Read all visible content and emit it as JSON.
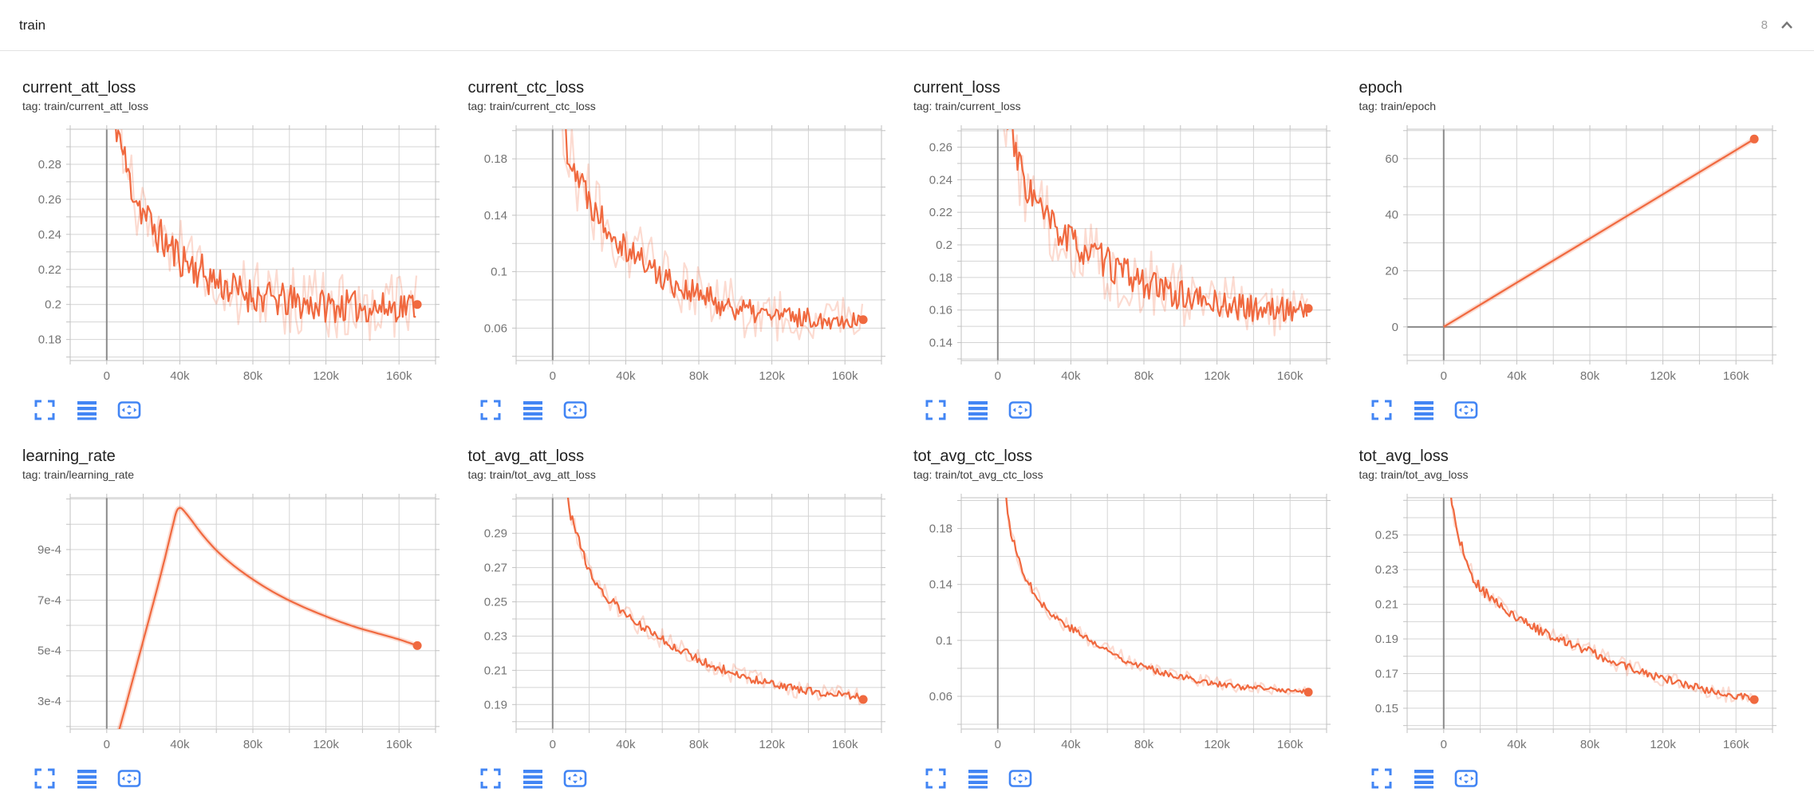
{
  "header": {
    "title": "train",
    "count": "8"
  },
  "colors": {
    "accent": "#f0693f",
    "accent_light": "rgba(242,106,61,0.24)",
    "icon_blue": "#4285f4",
    "axis_text": "#757575",
    "grid_line": "#d4d4d4",
    "plot_border": "#c2c2c2",
    "zero_line": "#8a8a8a",
    "title_text": "#212121",
    "tag_text": "#3d3d3d",
    "header_chevron": "#757575"
  },
  "x_axis": {
    "domain": [
      -20000,
      180000
    ],
    "minor_step": 20000,
    "data_end": 170000,
    "ticks": [
      {
        "v": 0,
        "label": "0"
      },
      {
        "v": 40000,
        "label": "40k"
      },
      {
        "v": 80000,
        "label": "80k"
      },
      {
        "v": 120000,
        "label": "120k"
      },
      {
        "v": 160000,
        "label": "160k"
      }
    ]
  },
  "card_toolbar": {
    "buttons": [
      {
        "name": "expand-card",
        "icon": "fullscreen-icon",
        "active": false
      },
      {
        "name": "log-scale-toggle",
        "icon": "log-scale-icon",
        "active": false
      },
      {
        "name": "fit-domain-to-data",
        "icon": "fit-domain-icon",
        "active": true
      }
    ]
  },
  "charts": [
    {
      "title": "current_att_loss",
      "tag": "tag: train/current_att_loss",
      "seed": 11,
      "y_domain": [
        0.168,
        0.3
      ],
      "y_minor": 0.01,
      "y_ticks": [
        {
          "v": 0.28,
          "label": "0.28"
        },
        {
          "v": 0.26,
          "label": "0.26"
        },
        {
          "v": 0.24,
          "label": "0.24"
        },
        {
          "v": 0.22,
          "label": "0.22"
        },
        {
          "v": 0.2,
          "label": "0.2"
        },
        {
          "v": 0.18,
          "label": "0.18"
        }
      ],
      "trend": [
        [
          0,
          0.34
        ],
        [
          3000,
          0.315
        ],
        [
          6000,
          0.3
        ],
        [
          12000,
          0.272
        ],
        [
          20000,
          0.252
        ],
        [
          30000,
          0.237
        ],
        [
          40000,
          0.227
        ],
        [
          55000,
          0.216
        ],
        [
          70000,
          0.208
        ],
        [
          90000,
          0.203
        ],
        [
          110000,
          0.2
        ],
        [
          130000,
          0.199
        ],
        [
          150000,
          0.198
        ],
        [
          170000,
          0.2
        ]
      ],
      "noise": [
        [
          0,
          0.012
        ],
        [
          170000,
          0.0085
        ]
      ],
      "raw_noise": [
        [
          0,
          0.026
        ],
        [
          30000,
          0.022
        ],
        [
          170000,
          0.018
        ]
      ],
      "end_dot": [
        170000,
        0.2
      ],
      "halo": false,
      "zero_y_line": false
    },
    {
      "title": "current_ctc_loss",
      "tag": "tag: train/current_ctc_loss",
      "seed": 22,
      "y_domain": [
        0.037,
        0.201
      ],
      "y_minor": 0.02,
      "y_ticks": [
        {
          "v": 0.18,
          "label": "0.18"
        },
        {
          "v": 0.14,
          "label": "0.14"
        },
        {
          "v": 0.1,
          "label": "0.1"
        },
        {
          "v": 0.06,
          "label": "0.06"
        }
      ],
      "trend": [
        [
          0,
          0.26
        ],
        [
          4000,
          0.215
        ],
        [
          8000,
          0.19
        ],
        [
          14000,
          0.168
        ],
        [
          20000,
          0.152
        ],
        [
          28000,
          0.137
        ],
        [
          40000,
          0.118
        ],
        [
          55000,
          0.101
        ],
        [
          70000,
          0.089
        ],
        [
          90000,
          0.078
        ],
        [
          110000,
          0.071
        ],
        [
          130000,
          0.068
        ],
        [
          150000,
          0.066
        ],
        [
          170000,
          0.066
        ]
      ],
      "noise": [
        [
          0,
          0.014
        ],
        [
          40000,
          0.011
        ],
        [
          170000,
          0.006
        ]
      ],
      "raw_noise": [
        [
          0,
          0.03
        ],
        [
          30000,
          0.025
        ],
        [
          170000,
          0.015
        ]
      ],
      "end_dot": [
        170000,
        0.066
      ],
      "halo": false,
      "zero_y_line": false
    },
    {
      "title": "current_loss",
      "tag": "tag: train/current_loss",
      "seed": 33,
      "y_domain": [
        0.129,
        0.271
      ],
      "y_minor": 0.01,
      "y_ticks": [
        {
          "v": 0.26,
          "label": "0.26"
        },
        {
          "v": 0.24,
          "label": "0.24"
        },
        {
          "v": 0.22,
          "label": "0.22"
        },
        {
          "v": 0.2,
          "label": "0.2"
        },
        {
          "v": 0.18,
          "label": "0.18"
        },
        {
          "v": 0.16,
          "label": "0.16"
        },
        {
          "v": 0.14,
          "label": "0.14"
        }
      ],
      "trend": [
        [
          0,
          0.31
        ],
        [
          3000,
          0.29
        ],
        [
          8000,
          0.262
        ],
        [
          15000,
          0.238
        ],
        [
          25000,
          0.218
        ],
        [
          35000,
          0.206
        ],
        [
          50000,
          0.195
        ],
        [
          70000,
          0.182
        ],
        [
          90000,
          0.172
        ],
        [
          110000,
          0.166
        ],
        [
          130000,
          0.162
        ],
        [
          150000,
          0.16
        ],
        [
          170000,
          0.161
        ]
      ],
      "noise": [
        [
          0,
          0.012
        ],
        [
          170000,
          0.007
        ]
      ],
      "raw_noise": [
        [
          0,
          0.028
        ],
        [
          170000,
          0.016
        ]
      ],
      "end_dot": [
        170000,
        0.161
      ],
      "halo": false,
      "zero_y_line": false
    },
    {
      "title": "epoch",
      "tag": "tag: train/epoch",
      "seed": 44,
      "y_domain": [
        -12,
        70.5
      ],
      "y_minor": 10,
      "y_ticks": [
        {
          "v": 60,
          "label": "60"
        },
        {
          "v": 40,
          "label": "40"
        },
        {
          "v": 20,
          "label": "20"
        },
        {
          "v": 0,
          "label": "0"
        }
      ],
      "trend": [
        [
          0,
          0
        ],
        [
          170000,
          67
        ]
      ],
      "noise": [],
      "raw_noise": [],
      "end_dot": [
        170000,
        67
      ],
      "halo": true,
      "zero_y_line": true
    },
    {
      "title": "learning_rate",
      "tag": "tag: train/learning_rate",
      "seed": 55,
      "y_domain": [
        0.00019,
        0.001105
      ],
      "y_minor": 0.0001,
      "y_ticks": [
        {
          "v": 0.0009,
          "label": "9e-4"
        },
        {
          "v": 0.0007,
          "label": "7e-4"
        },
        {
          "v": 0.0005,
          "label": "5e-4"
        },
        {
          "v": 0.0003,
          "label": "3e-4"
        }
      ],
      "trend": [
        [
          0,
          1e-05
        ],
        [
          5000,
          0.00014
        ],
        [
          10000,
          0.00027
        ],
        [
          20000,
          0.00054
        ],
        [
          30000,
          0.00081
        ],
        [
          36000,
          0.00099
        ],
        [
          39000,
          0.001078
        ],
        [
          44000,
          0.00104
        ],
        [
          52000,
          0.00096
        ],
        [
          62000,
          0.00088
        ],
        [
          75000,
          0.000805
        ],
        [
          90000,
          0.000735
        ],
        [
          105000,
          0.00068
        ],
        [
          120000,
          0.000635
        ],
        [
          135000,
          0.000595
        ],
        [
          150000,
          0.000565
        ],
        [
          160000,
          0.000545
        ],
        [
          170000,
          0.00052
        ]
      ],
      "noise": [],
      "raw_noise": [],
      "end_dot": [
        170000,
        0.00052
      ],
      "halo": true,
      "zero_y_line": false
    },
    {
      "title": "tot_avg_att_loss",
      "tag": "tag: train/tot_avg_att_loss",
      "seed": 66,
      "y_domain": [
        0.1757,
        0.3108
      ],
      "y_minor": 0.01,
      "y_ticks": [
        {
          "v": 0.29,
          "label": "0.29"
        },
        {
          "v": 0.27,
          "label": "0.27"
        },
        {
          "v": 0.25,
          "label": "0.25"
        },
        {
          "v": 0.23,
          "label": "0.23"
        },
        {
          "v": 0.21,
          "label": "0.21"
        },
        {
          "v": 0.19,
          "label": "0.19"
        }
      ],
      "trend": [
        [
          0,
          0.45
        ],
        [
          5000,
          0.34
        ],
        [
          10000,
          0.3
        ],
        [
          15000,
          0.283
        ],
        [
          20000,
          0.268
        ],
        [
          30000,
          0.252
        ],
        [
          40000,
          0.2425
        ],
        [
          55000,
          0.231
        ],
        [
          70000,
          0.222
        ],
        [
          85000,
          0.214
        ],
        [
          100000,
          0.208
        ],
        [
          115000,
          0.203
        ],
        [
          130000,
          0.2
        ],
        [
          145000,
          0.197
        ],
        [
          160000,
          0.1955
        ],
        [
          170000,
          0.1945
        ]
      ],
      "noise": [
        [
          0,
          0.003
        ],
        [
          170000,
          0.002
        ]
      ],
      "raw_noise": [
        [
          0,
          0.005
        ],
        [
          40000,
          0.0065
        ],
        [
          170000,
          0.005
        ]
      ],
      "end_dot": [
        170000,
        0.193
      ],
      "halo": false,
      "zero_y_line": false
    },
    {
      "title": "tot_avg_ctc_loss",
      "tag": "tag: train/tot_avg_ctc_loss",
      "seed": 77,
      "y_domain": [
        0.0366,
        0.202
      ],
      "y_minor": 0.02,
      "y_ticks": [
        {
          "v": 0.18,
          "label": "0.18"
        },
        {
          "v": 0.14,
          "label": "0.14"
        },
        {
          "v": 0.1,
          "label": "0.1"
        },
        {
          "v": 0.06,
          "label": "0.06"
        }
      ],
      "trend": [
        [
          0,
          0.3
        ],
        [
          5000,
          0.19
        ],
        [
          10000,
          0.163
        ],
        [
          17000,
          0.14
        ],
        [
          28000,
          0.12
        ],
        [
          40000,
          0.109
        ],
        [
          55000,
          0.096
        ],
        [
          70000,
          0.086
        ],
        [
          85000,
          0.079
        ],
        [
          100000,
          0.074
        ],
        [
          115000,
          0.07
        ],
        [
          130000,
          0.067
        ],
        [
          145000,
          0.0655
        ],
        [
          160000,
          0.064
        ],
        [
          170000,
          0.063
        ]
      ],
      "noise": [
        [
          0,
          0.004
        ],
        [
          20000,
          0.003
        ],
        [
          170000,
          0.0016
        ]
      ],
      "raw_noise": [
        [
          0,
          0.006
        ],
        [
          40000,
          0.006
        ],
        [
          170000,
          0.0045
        ]
      ],
      "end_dot": [
        170000,
        0.063
      ],
      "halo": false,
      "zero_y_line": false
    },
    {
      "title": "tot_avg_loss",
      "tag": "tag: train/tot_avg_loss",
      "seed": 88,
      "y_domain": [
        0.138,
        0.2715
      ],
      "y_minor": 0.01,
      "y_ticks": [
        {
          "v": 0.25,
          "label": "0.25"
        },
        {
          "v": 0.23,
          "label": "0.23"
        },
        {
          "v": 0.21,
          "label": "0.21"
        },
        {
          "v": 0.19,
          "label": "0.19"
        },
        {
          "v": 0.17,
          "label": "0.17"
        },
        {
          "v": 0.15,
          "label": "0.15"
        }
      ],
      "trend": [
        [
          0,
          0.32
        ],
        [
          4000,
          0.272
        ],
        [
          8000,
          0.25
        ],
        [
          13000,
          0.232
        ],
        [
          18000,
          0.222
        ],
        [
          25000,
          0.214
        ],
        [
          32000,
          0.208
        ],
        [
          40000,
          0.202
        ],
        [
          50000,
          0.196
        ],
        [
          60000,
          0.1915
        ],
        [
          75000,
          0.185
        ],
        [
          90000,
          0.178
        ],
        [
          105000,
          0.172
        ],
        [
          120000,
          0.167
        ],
        [
          135000,
          0.163
        ],
        [
          150000,
          0.159
        ],
        [
          160000,
          0.157
        ],
        [
          170000,
          0.1555
        ]
      ],
      "noise": [
        [
          0,
          0.003
        ],
        [
          170000,
          0.002
        ]
      ],
      "raw_noise": [
        [
          0,
          0.006
        ],
        [
          40000,
          0.0055
        ],
        [
          170000,
          0.0045
        ]
      ],
      "end_dot": [
        170000,
        0.155
      ],
      "halo": false,
      "zero_y_line": false
    }
  ]
}
